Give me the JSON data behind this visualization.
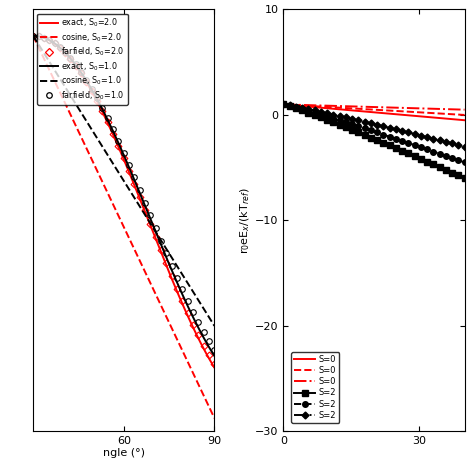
{
  "left": {
    "xlabel": "ngle (°)",
    "xlim": [
      30,
      90
    ],
    "ylim": [
      -30,
      2
    ],
    "xticks": [
      60,
      90
    ],
    "yticks": []
  },
  "right": {
    "ylabel": "r$_0$eE$_x$/(kT$_{ref}$)",
    "xlim": [
      0,
      40
    ],
    "ylim": [
      -30,
      10
    ],
    "xticks": [
      0,
      30
    ],
    "yticks": [
      -30,
      -20,
      -10,
      0,
      10
    ]
  },
  "bg_color": "#ffffff",
  "lw": 1.4
}
